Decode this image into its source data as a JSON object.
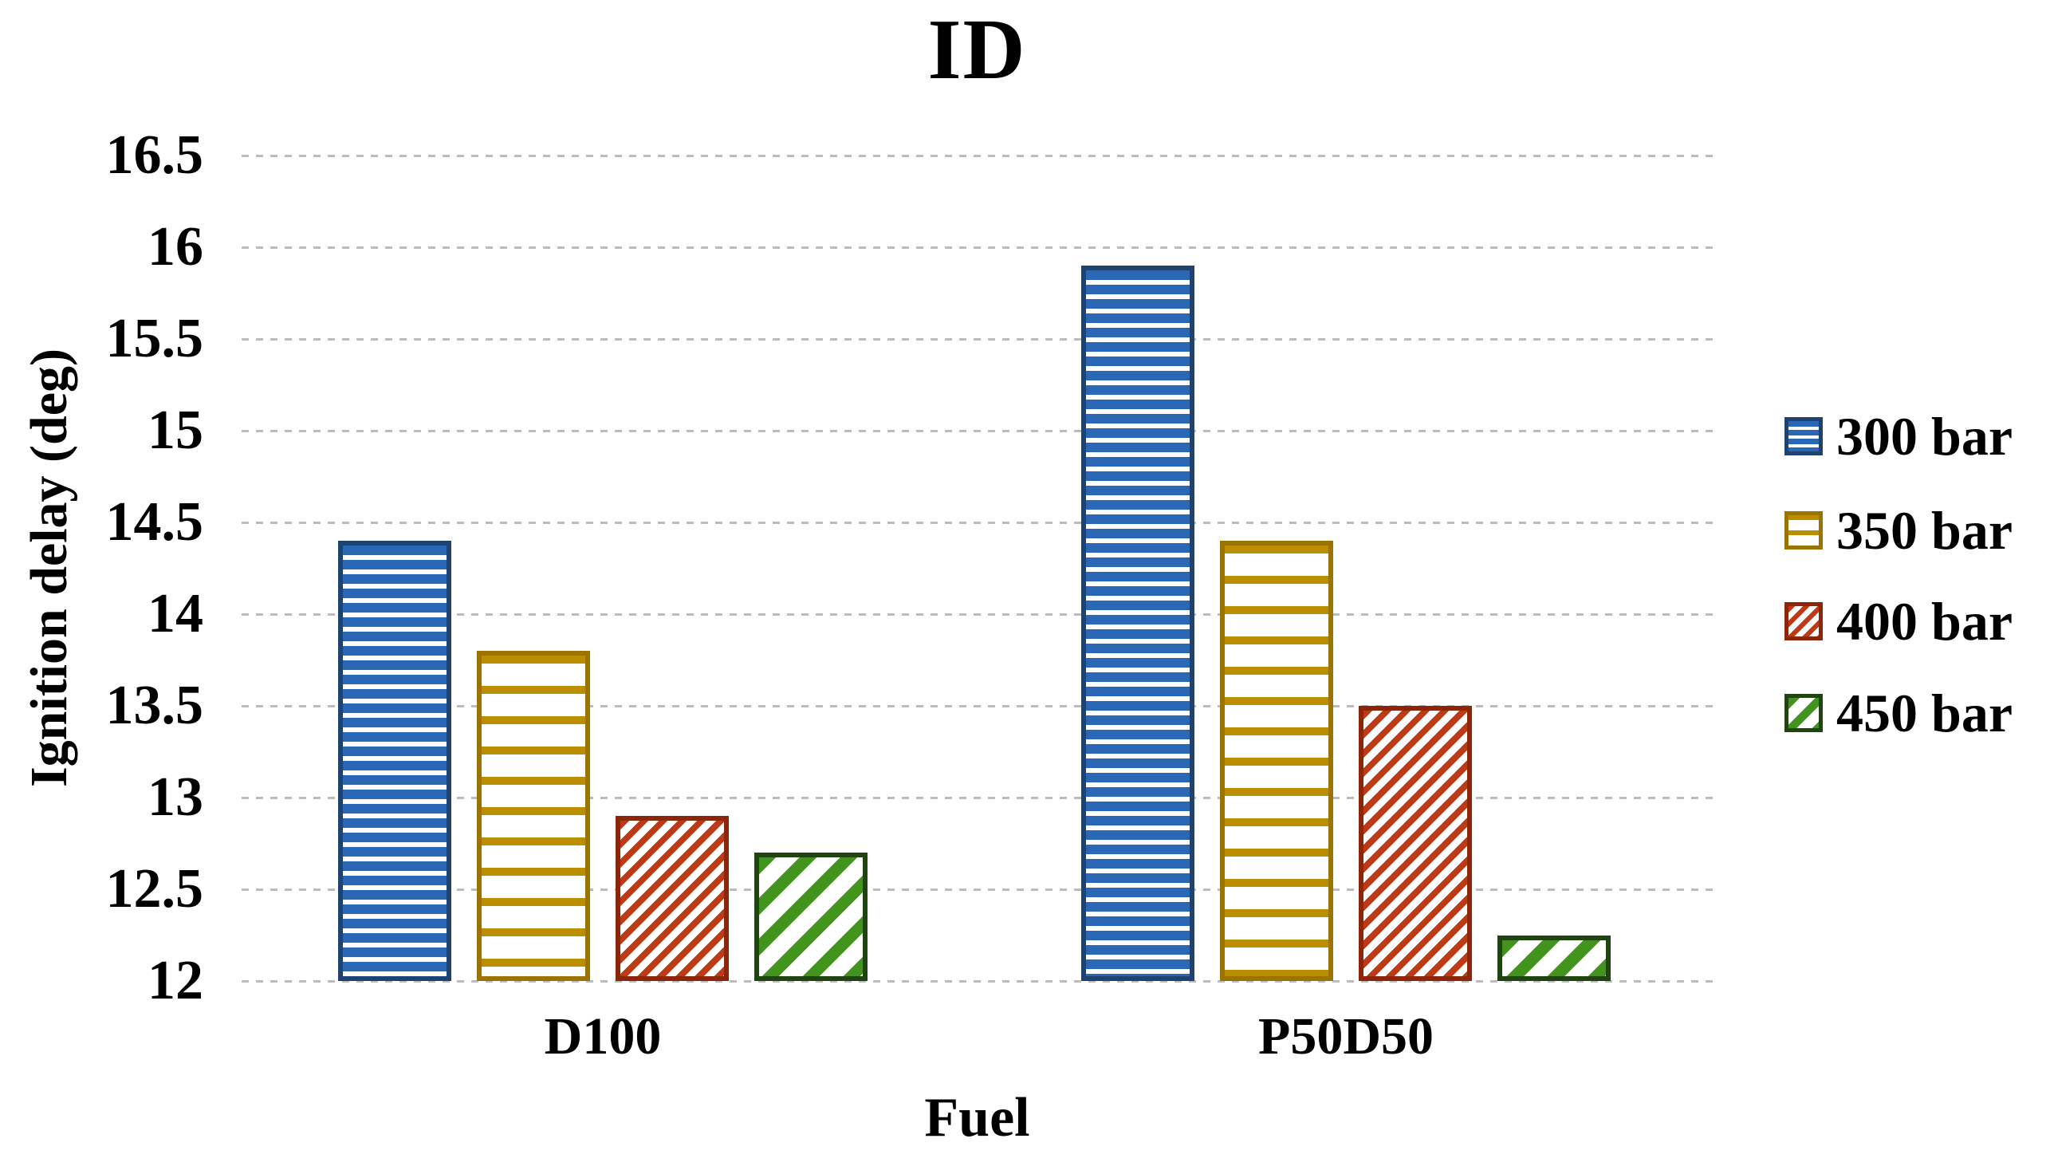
{
  "chart_data": {
    "type": "bar",
    "title": "ID",
    "xlabel": "Fuel",
    "ylabel": "Ignition delay (deg)",
    "categories": [
      "D100",
      "P50D50"
    ],
    "series": [
      {
        "name": "300 bar",
        "values": [
          14.4,
          15.9
        ],
        "color": "#2a67b4",
        "border_color": "#1e4370",
        "pattern": "h-dense",
        "swatch_icon": "horizontal-stripe-dense-icon"
      },
      {
        "name": "350 bar",
        "values": [
          13.8,
          14.4
        ],
        "color": "#bd8d00",
        "border_color": "#9a7300",
        "pattern": "h-sparse",
        "swatch_icon": "horizontal-stripe-sparse-icon"
      },
      {
        "name": "400 bar",
        "values": [
          12.9,
          13.5
        ],
        "color": "#be3914",
        "border_color": "#8d2509",
        "pattern": "d-dense",
        "swatch_icon": "diagonal-stripe-dense-icon"
      },
      {
        "name": "450 bar",
        "values": [
          12.7,
          12.25
        ],
        "color": "#42941d",
        "border_color": "#1e440f",
        "pattern": "d-sparse",
        "swatch_icon": "diagonal-stripe-sparse-icon"
      }
    ],
    "ylim": [
      12,
      16.5
    ],
    "ytick_step": 0.5,
    "ytick_labels": [
      "12",
      "12.5",
      "13",
      "13.5",
      "14",
      "14.5",
      "15",
      "15.5",
      "16",
      "16.5"
    ],
    "grid": true,
    "gridline_color": "#bcbcbc",
    "legend_position": "right"
  }
}
